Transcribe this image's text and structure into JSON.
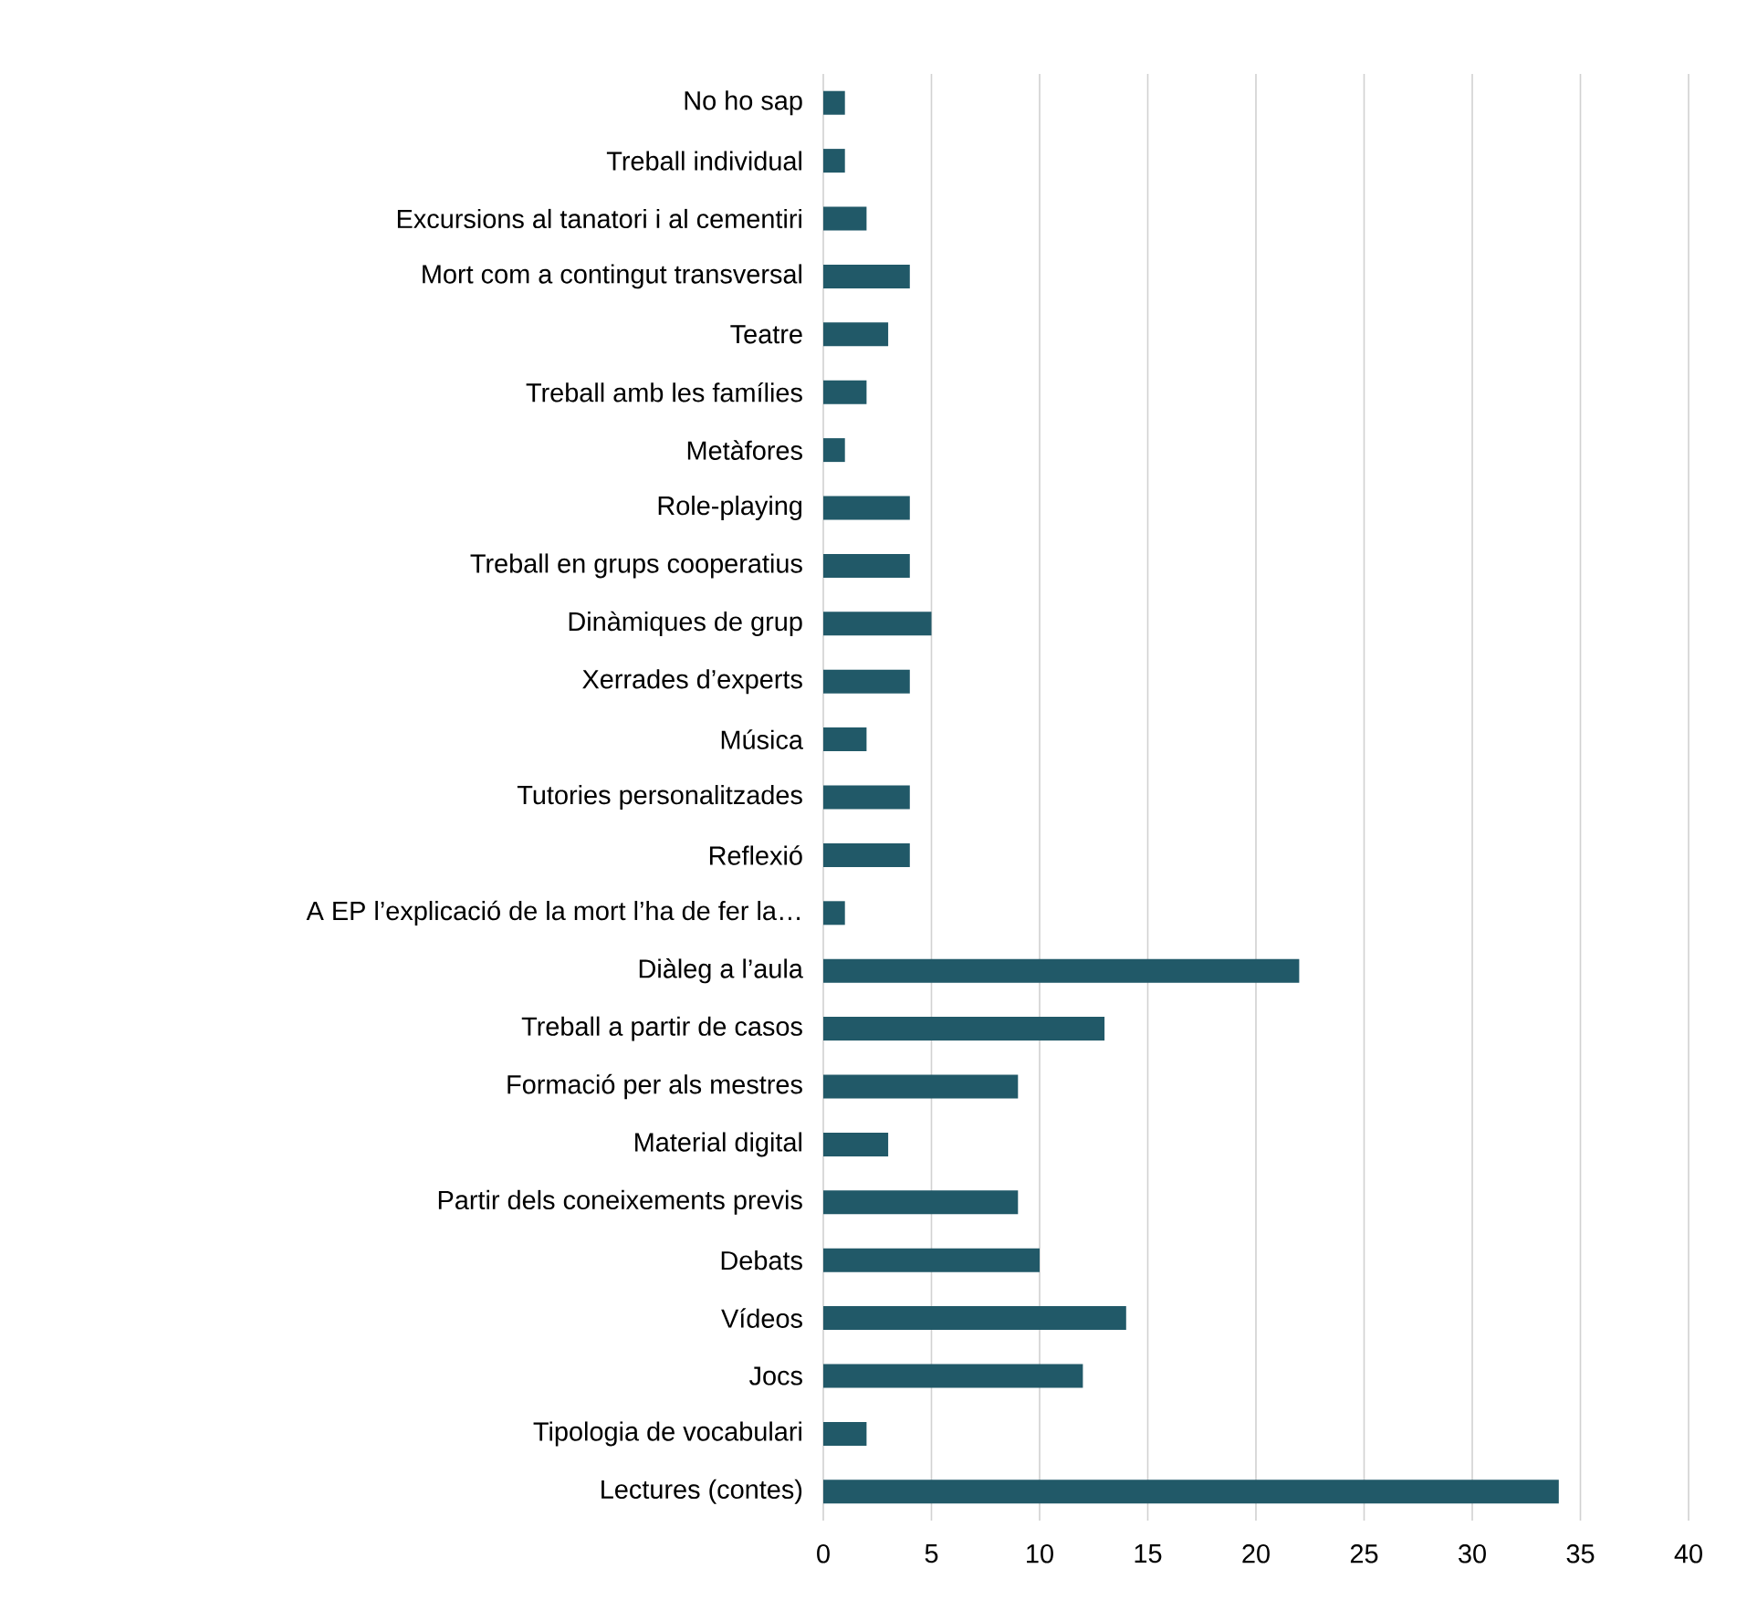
{
  "chart_data": {
    "type": "bar",
    "orientation": "horizontal",
    "categories": [
      "No ho sap",
      "Treball individual",
      "Excursions al tanatori i al cementiri",
      "Mort com a contingut transversal",
      "Teatre",
      "Treball amb les famílies",
      "Metàfores",
      "Role-playing",
      "Treball en grups cooperatius",
      "Dinàmiques de grup",
      "Xerrades d’experts",
      "Música",
      "Tutories personalitzades",
      "Reflexió",
      "A EP l’explicació de la mort l’ha de fer la…",
      "Diàleg a l’aula",
      "Treball a partir de casos",
      "Formació per als mestres",
      "Material digital",
      "Partir dels coneixements previs",
      "Debats",
      "Vídeos",
      "Jocs",
      "Tipologia de vocabulari",
      "Lectures (contes)"
    ],
    "values": [
      1,
      1,
      2,
      4,
      3,
      2,
      1,
      4,
      4,
      5,
      4,
      2,
      4,
      4,
      1,
      22,
      13,
      9,
      3,
      9,
      10,
      14,
      12,
      2,
      34
    ],
    "color": "#215968",
    "xlim": [
      0,
      40
    ],
    "xticks": [
      0,
      5,
      10,
      15,
      20,
      25,
      30,
      35,
      40
    ],
    "grid": "x"
  }
}
